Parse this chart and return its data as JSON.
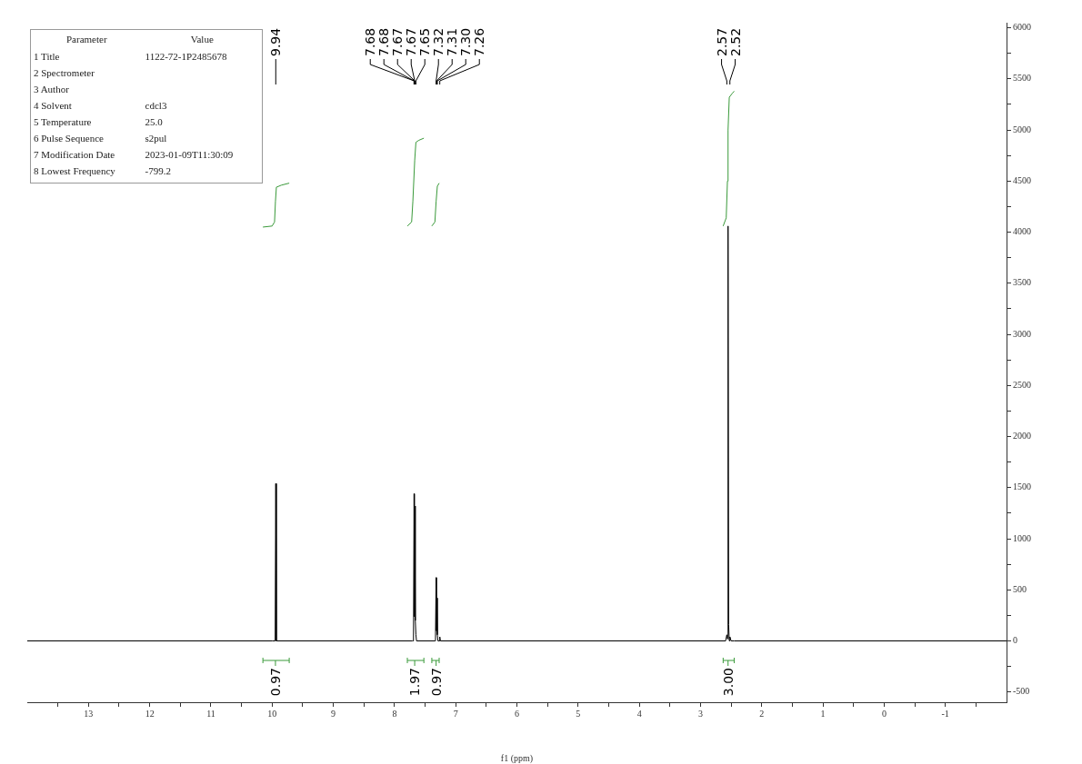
{
  "chart_data": [
    {
      "type": "line",
      "xlabel": "f1 (ppm)",
      "grid": false,
      "legend": false,
      "marker": "none",
      "line_style": "solid",
      "xlim": [
        14,
        -2
      ],
      "xticks": [
        {
          "value": 13.5,
          "label": null
        },
        13,
        {
          "value": 12.5,
          "label": null
        },
        12,
        {
          "value": 11.5,
          "label": null
        },
        11,
        {
          "value": 10.5,
          "label": null
        },
        10,
        {
          "value": 9.5,
          "label": null
        },
        9,
        {
          "value": 8.5,
          "label": null
        },
        8,
        {
          "value": 7.5,
          "label": null
        },
        7,
        {
          "value": 6.5,
          "label": null
        },
        6,
        {
          "value": 5.5,
          "label": null
        },
        5,
        {
          "value": 4.5,
          "label": null
        },
        4,
        {
          "value": 3.5,
          "label": null
        },
        3,
        {
          "value": 2.5,
          "label": null
        },
        2,
        {
          "value": 1.5,
          "label": null
        },
        1,
        {
          "value": 0.5,
          "label": null
        },
        0,
        {
          "value": -0.5,
          "label": null
        },
        -1,
        {
          "value": -1.5,
          "label": null
        }
      ],
      "ylim": [
        -600,
        6050
      ],
      "yticks": [
        -500,
        {
          "value": -250,
          "label": null
        },
        0,
        {
          "value": 250,
          "label": null
        },
        500,
        {
          "value": 750,
          "label": null
        },
        1000,
        {
          "value": 1250,
          "label": null
        },
        1500,
        {
          "value": 1750,
          "label": null
        },
        2000,
        {
          "value": 2250,
          "label": null
        },
        2500,
        {
          "value": 2750,
          "label": null
        },
        3000,
        {
          "value": 3250,
          "label": null
        },
        3500,
        {
          "value": 3750,
          "label": null
        },
        4000,
        {
          "value": 4250,
          "label": null
        },
        4500,
        {
          "value": 4750,
          "label": null
        },
        5000,
        {
          "value": 5250,
          "label": null
        },
        5500,
        {
          "value": 5750,
          "label": null
        },
        6000
      ],
      "series": [
        {
          "type": "line",
          "color": "#000000",
          "x": [
            14,
            10.0,
            9.95,
            9.94,
            9.93,
            9.9,
            7.71,
            7.69,
            7.68,
            7.675,
            7.67,
            7.66,
            7.65,
            7.64,
            7.34,
            7.33,
            7.32,
            7.315,
            7.31,
            7.3,
            7.29,
            7.27,
            7.26,
            7.25,
            2.62,
            2.59,
            2.57,
            2.56,
            2.55,
            2.54,
            2.53,
            2.52,
            2.5,
            2.45,
            -2
          ],
          "values": [
            0,
            0,
            0,
            1540,
            0,
            0,
            0,
            0,
            1440,
            240,
            1320,
            200,
            60,
            0,
            0,
            40,
            620,
            100,
            420,
            60,
            0,
            0,
            40,
            0,
            0,
            0,
            60,
            20,
            4060,
            160,
            0,
            40,
            0,
            0,
            0
          ]
        },
        {
          "type": "line",
          "color": "#3a9a3a",
          "x": [
            10.15,
            10.0,
            9.96,
            9.945,
            9.93,
            9.85,
            9.72
          ],
          "values": [
            4050,
            4060,
            4100,
            4300,
            4440,
            4460,
            4480
          ]
        },
        {
          "type": "line",
          "color": "#3a9a3a",
          "x": [
            7.79,
            7.72,
            7.7,
            7.67,
            7.65,
            7.6,
            7.52
          ],
          "values": [
            4060,
            4100,
            4300,
            4700,
            4880,
            4900,
            4920
          ]
        },
        {
          "type": "line",
          "color": "#3a9a3a",
          "x": [
            7.39,
            7.34,
            7.32,
            7.3,
            7.27
          ],
          "values": [
            4060,
            4100,
            4300,
            4450,
            4480
          ]
        },
        {
          "type": "line",
          "color": "#3a9a3a",
          "x": [
            2.63,
            2.58,
            2.56,
            2.55,
            2.53,
            2.48,
            2.45
          ],
          "values": [
            4060,
            4140,
            4500,
            5000,
            5320,
            5360,
            5380
          ]
        }
      ],
      "annotations": [
        "9.94",
        "7.68",
        "7.68",
        "7.67",
        "7.67",
        "7.65",
        "7.32",
        "7.31",
        "7.30",
        "7.26",
        "2.57",
        "2.52",
        "0.97",
        "1.97",
        "0.97",
        "3.00"
      ]
    },
    {
      "type": "other",
      "annotations": [
        "Parameter",
        "Value"
      ],
      "categories": [
        "1 Title",
        "2 Spectrometer",
        "3 Author",
        "4 Solvent",
        "5 Temperature",
        "6 Pulse Sequence",
        "7 Modification Date",
        "8 Lowest Frequency"
      ],
      "value_labels": [
        "1122-72-1P2485678",
        null,
        null,
        "cdcl3",
        "25.0",
        "s2pul",
        "2023-01-09T11:30:09",
        "-799.2"
      ]
    }
  ]
}
